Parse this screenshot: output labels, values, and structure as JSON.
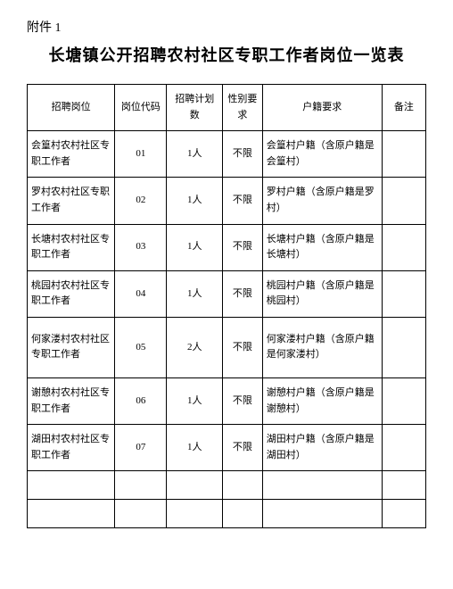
{
  "attachment_label": "附件 1",
  "title": "长塘镇公开招聘农村社区专职工作者岗位一览表",
  "columns": {
    "position": "招聘岗位",
    "code": "岗位代码",
    "count": "招聘计划数",
    "gender": "性别要求",
    "hukou": "户籍要求",
    "remark": "备注"
  },
  "rows": [
    {
      "position": "会篁村农村社区专职工作者",
      "code": "01",
      "count": "1人",
      "gender": "不限",
      "hukou": "会篁村户籍（含原户籍是会篁村）",
      "remark": "",
      "tall": false
    },
    {
      "position": "罗村农村社区专职工作者",
      "code": "02",
      "count": "1人",
      "gender": "不限",
      "hukou": "罗村户籍（含原户籍是罗村）",
      "remark": "",
      "tall": false
    },
    {
      "position": "长塘村农村社区专职工作者",
      "code": "03",
      "count": "1人",
      "gender": "不限",
      "hukou": "长塘村户籍（含原户籍是长塘村）",
      "remark": "",
      "tall": false
    },
    {
      "position": "桃园村农村社区专职工作者",
      "code": "04",
      "count": "1人",
      "gender": "不限",
      "hukou": "桃园村户籍（含原户籍是桃园村）",
      "remark": "",
      "tall": false
    },
    {
      "position": "何家溇村农村社区专职工作者",
      "code": "05",
      "count": "2人",
      "gender": "不限",
      "hukou": "何家溇村户籍（含原户籍是何家溇村）",
      "remark": "",
      "tall": true
    },
    {
      "position": "谢憩村农村社区专职工作者",
      "code": "06",
      "count": "1人",
      "gender": "不限",
      "hukou": "谢憩村户籍（含原户籍是谢憩村）",
      "remark": "",
      "tall": false
    },
    {
      "position": "湖田村农村社区专职工作者",
      "code": "07",
      "count": "1人",
      "gender": "不限",
      "hukou": "湖田村户籍（含原户籍是湖田村）",
      "remark": "",
      "tall": false
    }
  ],
  "empty_rows": 2
}
